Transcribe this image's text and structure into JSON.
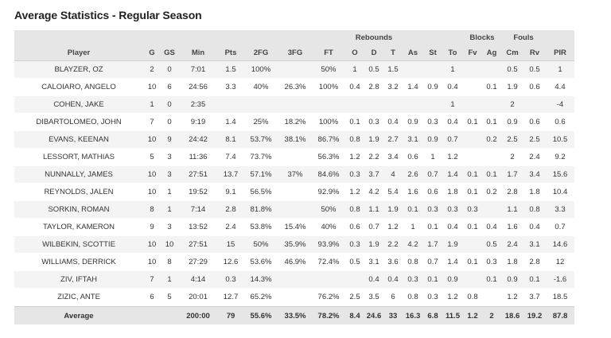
{
  "page_title": "Average Statistics - Regular Season",
  "groups": {
    "rebounds": "Rebounds",
    "blocks": "Blocks",
    "fouls": "Fouls"
  },
  "columns": [
    "Player",
    "G",
    "GS",
    "Min",
    "Pts",
    "2FG",
    "3FG",
    "FT",
    "O",
    "D",
    "T",
    "As",
    "St",
    "To",
    "Fv",
    "Ag",
    "Cm",
    "Rv",
    "PIR"
  ],
  "rows": [
    [
      "BLAYZER, OZ",
      "2",
      "0",
      "7:01",
      "1.5",
      "100%",
      "",
      "50%",
      "1",
      "0.5",
      "1.5",
      "",
      "",
      "1",
      "",
      "",
      "0.5",
      "0.5",
      "1"
    ],
    [
      "CALOIARO, ANGELO",
      "10",
      "6",
      "24:56",
      "3.3",
      "40%",
      "26.3%",
      "100%",
      "0.4",
      "2.8",
      "3.2",
      "1.4",
      "0.9",
      "0.4",
      "",
      "0.1",
      "1.9",
      "0.6",
      "4.4"
    ],
    [
      "COHEN, JAKE",
      "1",
      "0",
      "2:35",
      "",
      "",
      "",
      "",
      "",
      "",
      "",
      "",
      "",
      "1",
      "",
      "",
      "2",
      "",
      "-4"
    ],
    [
      "DIBARTOLOMEO, JOHN",
      "7",
      "0",
      "9:19",
      "1.4",
      "25%",
      "18.2%",
      "100%",
      "0.1",
      "0.3",
      "0.4",
      "0.9",
      "0.3",
      "0.4",
      "0.1",
      "0.1",
      "0.9",
      "0.6",
      "0.6"
    ],
    [
      "EVANS, KEENAN",
      "10",
      "9",
      "24:42",
      "8.1",
      "53.7%",
      "38.1%",
      "86.7%",
      "0.8",
      "1.9",
      "2.7",
      "3.1",
      "0.9",
      "0.7",
      "",
      "0.2",
      "2.5",
      "2.5",
      "10.5"
    ],
    [
      "LESSORT, MATHIAS",
      "5",
      "3",
      "11:36",
      "7.4",
      "73.7%",
      "",
      "56.3%",
      "1.2",
      "2.2",
      "3.4",
      "0.6",
      "1",
      "1.2",
      "",
      "",
      "2",
      "2.4",
      "9.2"
    ],
    [
      "NUNNALLY, JAMES",
      "10",
      "3",
      "27:51",
      "13.7",
      "57.1%",
      "37%",
      "84.6%",
      "0.3",
      "3.7",
      "4",
      "2.6",
      "0.7",
      "1.4",
      "0.1",
      "0.1",
      "1.7",
      "3.4",
      "15.6"
    ],
    [
      "REYNOLDS, JALEN",
      "10",
      "1",
      "19:52",
      "9.1",
      "56.5%",
      "",
      "92.9%",
      "1.2",
      "4.2",
      "5.4",
      "1.6",
      "0.6",
      "1.8",
      "0.1",
      "0.2",
      "2.8",
      "1.8",
      "10.4"
    ],
    [
      "SORKIN, ROMAN",
      "8",
      "1",
      "7:14",
      "2.8",
      "81.8%",
      "",
      "50%",
      "0.8",
      "1.1",
      "1.9",
      "0.1",
      "0.3",
      "0.3",
      "0.3",
      "",
      "1.1",
      "0.8",
      "3.3"
    ],
    [
      "TAYLOR, KAMERON",
      "9",
      "3",
      "13:52",
      "2.4",
      "53.8%",
      "15.4%",
      "40%",
      "0.6",
      "0.7",
      "1.2",
      "1",
      "0.1",
      "0.4",
      "0.1",
      "0.4",
      "1.6",
      "0.4",
      "0.7"
    ],
    [
      "WILBEKIN, SCOTTIE",
      "10",
      "10",
      "27:51",
      "15",
      "50%",
      "35.9%",
      "93.9%",
      "0.3",
      "1.9",
      "2.2",
      "4.2",
      "1.7",
      "1.9",
      "",
      "0.5",
      "2.4",
      "3.1",
      "14.6"
    ],
    [
      "WILLIAMS, DERRICK",
      "10",
      "8",
      "27:29",
      "12.6",
      "53.6%",
      "46.9%",
      "72.4%",
      "0.5",
      "3.1",
      "3.6",
      "0.8",
      "0.7",
      "1.4",
      "0.1",
      "0.3",
      "1.8",
      "2.8",
      "12"
    ],
    [
      "ZIV, IFTAH",
      "7",
      "1",
      "4:14",
      "0.3",
      "14.3%",
      "",
      "",
      "",
      "0.4",
      "0.4",
      "0.3",
      "0.1",
      "0.9",
      "",
      "0.1",
      "0.9",
      "0.1",
      "-1.6"
    ],
    [
      "ZIZIC, ANTE",
      "6",
      "5",
      "20:01",
      "12.7",
      "65.2%",
      "",
      "76.2%",
      "2.5",
      "3.5",
      "6",
      "0.8",
      "0.3",
      "1.2",
      "0.8",
      "",
      "1.2",
      "3.7",
      "18.5"
    ]
  ],
  "average": [
    "Average",
    "",
    "",
    "200:00",
    "79",
    "55.6%",
    "33.5%",
    "78.2%",
    "8.4",
    "24.6",
    "33",
    "16.3",
    "6.8",
    "11.5",
    "1.2",
    "2",
    "18.6",
    "19.2",
    "87.8"
  ]
}
